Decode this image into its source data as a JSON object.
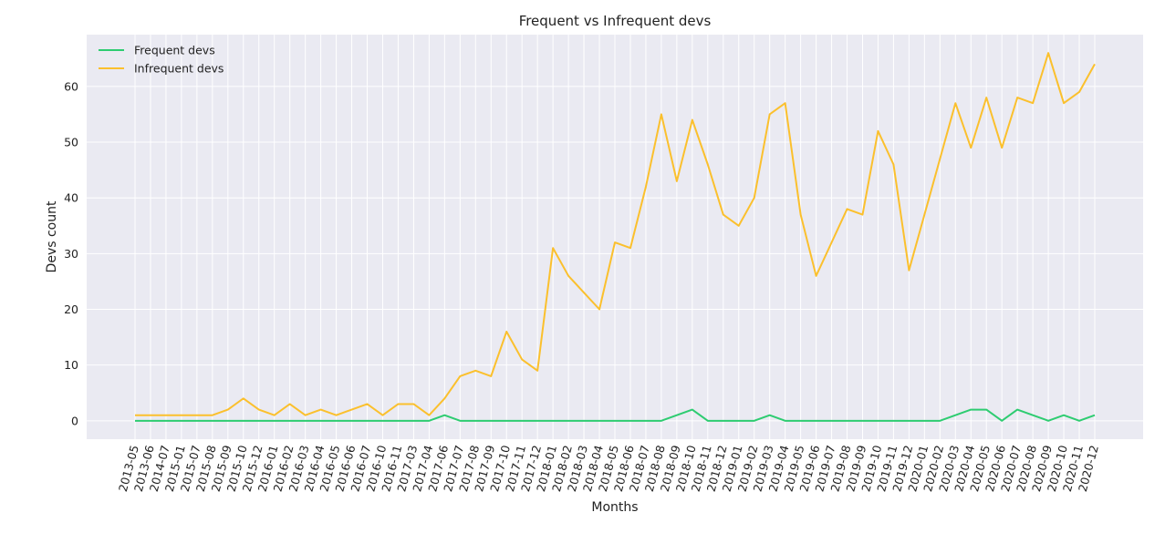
{
  "chart_data": {
    "type": "line",
    "title": "Frequent vs Infrequent devs",
    "xlabel": "Months",
    "ylabel": "Devs count",
    "ylim": [
      -3.3,
      69.3
    ],
    "yticks": [
      0,
      10,
      20,
      30,
      40,
      50,
      60
    ],
    "grid": true,
    "legend_position": "top-left",
    "categories": [
      "2013-05",
      "2013-06",
      "2014-07",
      "2015-01",
      "2015-07",
      "2015-08",
      "2015-09",
      "2015-10",
      "2015-12",
      "2016-01",
      "2016-02",
      "2016-03",
      "2016-04",
      "2016-05",
      "2016-06",
      "2016-07",
      "2016-10",
      "2016-11",
      "2017-03",
      "2017-04",
      "2017-06",
      "2017-07",
      "2017-08",
      "2017-09",
      "2017-10",
      "2017-11",
      "2017-12",
      "2018-01",
      "2018-02",
      "2018-03",
      "2018-04",
      "2018-05",
      "2018-06",
      "2018-07",
      "2018-08",
      "2018-09",
      "2018-10",
      "2018-11",
      "2018-12",
      "2019-01",
      "2019-02",
      "2019-03",
      "2019-04",
      "2019-05",
      "2019-06",
      "2019-07",
      "2019-08",
      "2019-09",
      "2019-10",
      "2019-11",
      "2019-12",
      "2020-01",
      "2020-02",
      "2020-03",
      "2020-04",
      "2020-05",
      "2020-06",
      "2020-07",
      "2020-08",
      "2020-09",
      "2020-10",
      "2020-11",
      "2020-12"
    ],
    "series": [
      {
        "name": "Frequent devs",
        "color": "#2ecc71",
        "values": [
          0,
          0,
          0,
          0,
          0,
          0,
          0,
          0,
          0,
          0,
          0,
          0,
          0,
          0,
          0,
          0,
          0,
          0,
          0,
          0,
          1,
          0,
          0,
          0,
          0,
          0,
          0,
          0,
          0,
          0,
          0,
          0,
          0,
          0,
          0,
          1,
          2,
          0,
          0,
          0,
          0,
          1,
          0,
          0,
          0,
          0,
          0,
          0,
          0,
          0,
          0,
          0,
          0,
          1,
          2,
          2,
          0,
          2,
          1,
          0,
          1,
          0,
          1
        ]
      },
      {
        "name": "Infrequent devs",
        "color": "#fbc02d",
        "values": [
          1,
          1,
          1,
          1,
          1,
          1,
          2,
          4,
          2,
          1,
          3,
          1,
          2,
          1,
          2,
          3,
          1,
          3,
          3,
          1,
          4,
          8,
          9,
          8,
          16,
          11,
          9,
          31,
          26,
          23,
          20,
          32,
          31,
          42,
          55,
          43,
          54,
          46,
          37,
          35,
          40,
          55,
          57,
          37,
          26,
          32,
          38,
          37,
          52,
          46,
          27,
          37,
          47,
          57,
          49,
          58,
          49,
          58,
          57,
          66,
          57,
          59,
          64
        ]
      }
    ]
  }
}
